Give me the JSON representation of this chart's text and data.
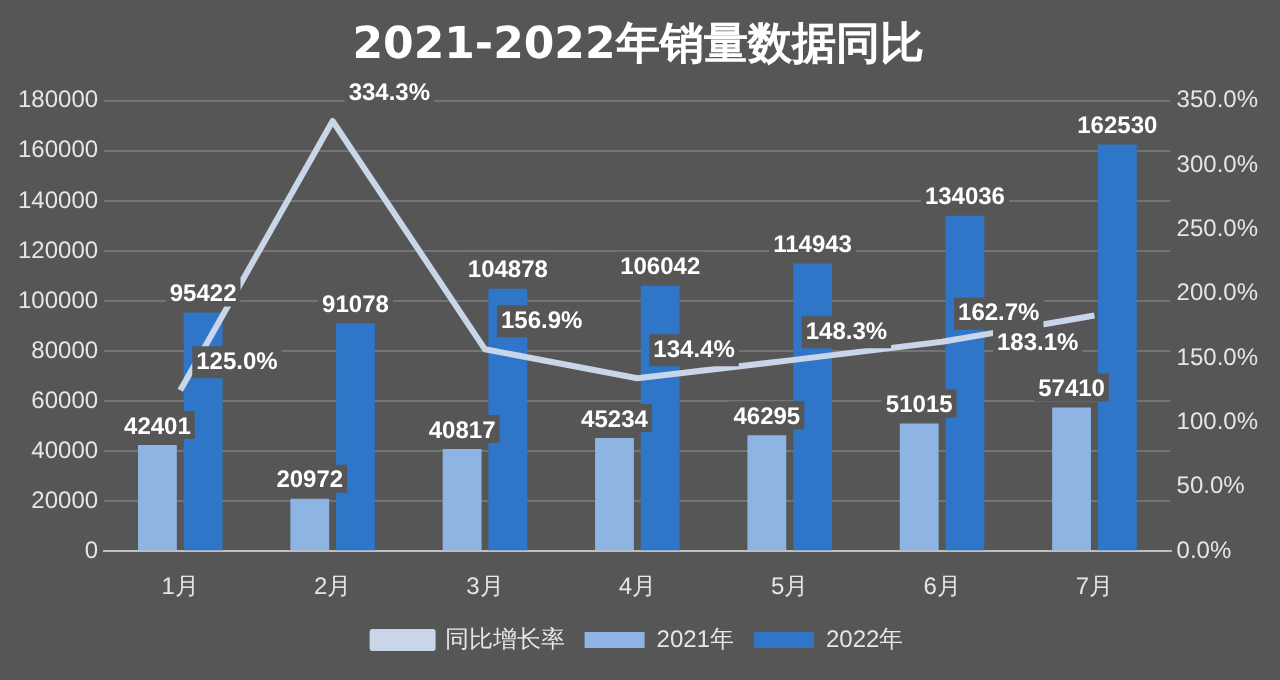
{
  "chart_data": {
    "type": "bar",
    "title": "2021-2022年销量数据同比",
    "categories": [
      "1月",
      "2月",
      "3月",
      "4月",
      "5月",
      "6月",
      "7月"
    ],
    "series": [
      {
        "name": "2021年",
        "color": "#8eb4e3",
        "values": [
          42401,
          20972,
          40817,
          45234,
          46295,
          51015,
          57410
        ]
      },
      {
        "name": "2022年",
        "color": "#2f75c8",
        "values": [
          95422,
          91078,
          104878,
          106042,
          114943,
          134036,
          162530
        ]
      },
      {
        "name": "同比增长率",
        "type": "line",
        "axis": "y2",
        "color": "#c9d6ea",
        "values": [
          125.0,
          334.3,
          156.9,
          134.4,
          148.3,
          162.7,
          183.1
        ],
        "value_labels": [
          "125.0%",
          "334.3%",
          "156.9%",
          "134.4%",
          "148.3%",
          "162.7%",
          "183.1%"
        ]
      }
    ],
    "ylim": [
      0,
      180000
    ],
    "yticks": [
      0,
      20000,
      40000,
      60000,
      80000,
      100000,
      120000,
      140000,
      160000,
      180000
    ],
    "y2lim": [
      0,
      350
    ],
    "y2ticks": [
      {
        "value": 0,
        "label": "0.0%"
      },
      {
        "value": 50,
        "label": "50.0%"
      },
      {
        "value": 100,
        "label": "100.0%"
      },
      {
        "value": 150,
        "label": "150.0%"
      },
      {
        "value": 200,
        "label": "200.0%"
      },
      {
        "value": 250,
        "label": "250.0%"
      },
      {
        "value": 300,
        "label": "300.0%"
      },
      {
        "value": 350,
        "label": "350.0%"
      }
    ],
    "grid": "y",
    "legend": "bottom",
    "data_labels": true
  }
}
